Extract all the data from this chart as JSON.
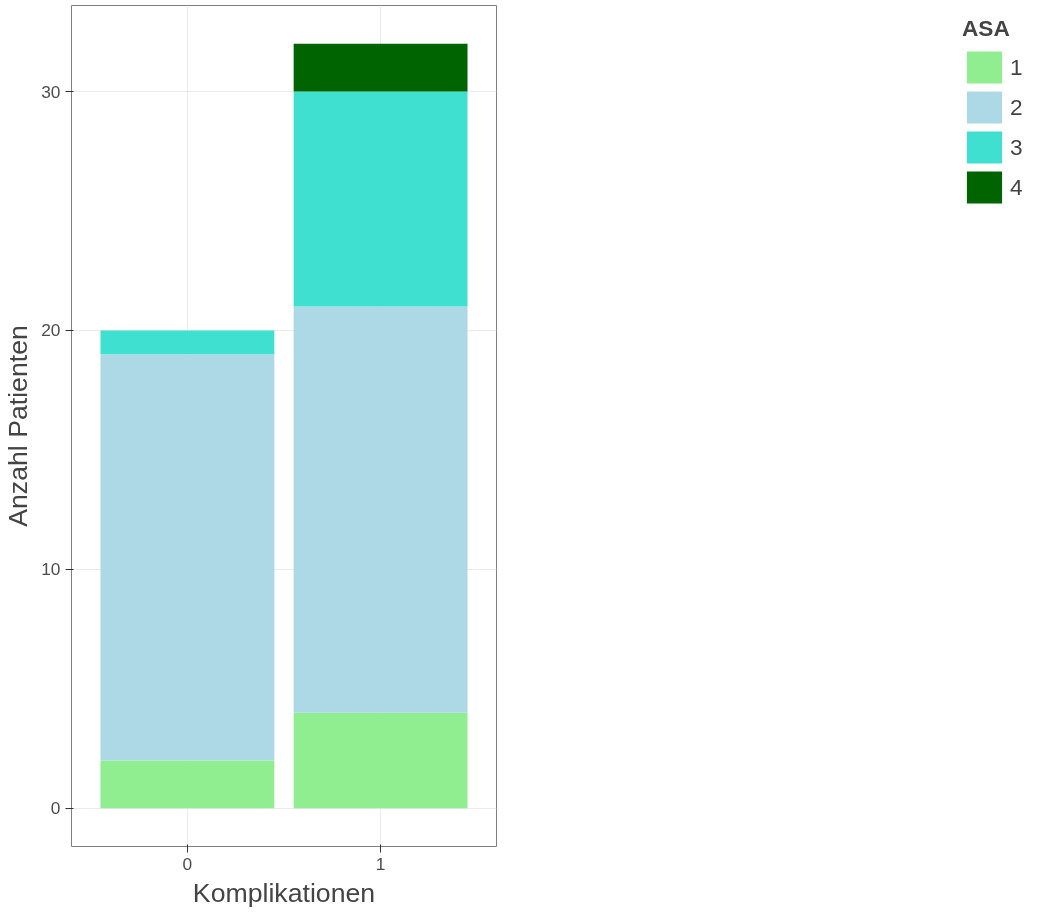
{
  "chart_data": {
    "type": "bar",
    "stacked": true,
    "xlabel": "Komplikationen",
    "ylabel": "Anzahl Patienten",
    "legend_title": "ASA",
    "categories": [
      "0",
      "1"
    ],
    "series": [
      {
        "name": "1",
        "color": "#90ee90",
        "values": [
          2,
          4
        ]
      },
      {
        "name": "2",
        "color": "#add8e6",
        "values": [
          17,
          17
        ]
      },
      {
        "name": "3",
        "color": "#40e0d0",
        "values": [
          1,
          9
        ]
      },
      {
        "name": "4",
        "color": "#006400",
        "values": [
          0,
          2
        ]
      }
    ],
    "ylim": [
      -1.6,
      33.6
    ],
    "yticks": [
      0,
      10,
      20,
      30
    ],
    "grid": true,
    "legend": "right"
  }
}
